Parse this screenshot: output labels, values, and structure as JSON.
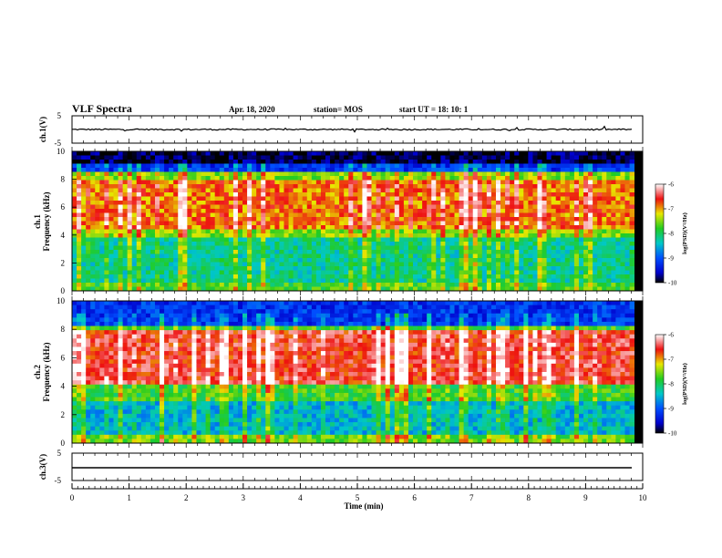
{
  "header": {
    "title": "VLF Spectra",
    "date": "Apr. 18, 2020",
    "station": "station= MOS",
    "start": "start  UT =   18: 10: 1"
  },
  "chart_data": [
    {
      "type": "line",
      "name": "ch1-waveform",
      "ylabel": "ch.1(V)",
      "ylim": [
        -5,
        5
      ],
      "yticks": [
        "5",
        "-5"
      ],
      "xlim": [
        0,
        10
      ],
      "approx_level": 0
    },
    {
      "type": "heatmap",
      "name": "ch1-spectrogram",
      "ylabel": "ch.1\nFrequency (kHz)",
      "ylim": [
        0,
        10
      ],
      "yticks": [
        "0",
        "2",
        "4",
        "6",
        "8",
        "10"
      ],
      "xlim": [
        0,
        9.85
      ],
      "intense_band_khz": [
        4.5,
        8.0
      ],
      "colorbar": {
        "ticks": [
          "-6",
          "-7",
          "-8",
          "-9",
          "-10"
        ],
        "label": "log(PSD)(V²/Hz)",
        "range": [
          -10,
          -6
        ]
      }
    },
    {
      "type": "heatmap",
      "name": "ch2-spectrogram",
      "ylabel": "ch.2\nFrequency (kHz)",
      "ylim": [
        0,
        10
      ],
      "yticks": [
        "0",
        "2",
        "4",
        "6",
        "8",
        "10"
      ],
      "xlim": [
        0,
        9.85
      ],
      "intense_band_khz": [
        4.2,
        7.8
      ],
      "colorbar": {
        "ticks": [
          "-6",
          "-7",
          "-8",
          "-9",
          "-10"
        ],
        "label": "log(PSD)(V²/Hz)",
        "range": [
          -10,
          -6
        ]
      }
    },
    {
      "type": "line",
      "name": "ch3-waveform",
      "ylabel": "ch.3(V)",
      "ylim": [
        -5,
        5
      ],
      "yticks": [
        "5",
        "-5"
      ],
      "xlim": [
        0,
        10
      ],
      "approx_level": -1
    }
  ],
  "x_axis": {
    "label": "Time  (min)",
    "ticks": [
      "0",
      "1",
      "2",
      "3",
      "4",
      "5",
      "6",
      "7",
      "8",
      "9",
      "10"
    ],
    "range": [
      0,
      10
    ]
  },
  "colors": {
    "frame": "#000000",
    "background": "#ffffff"
  }
}
